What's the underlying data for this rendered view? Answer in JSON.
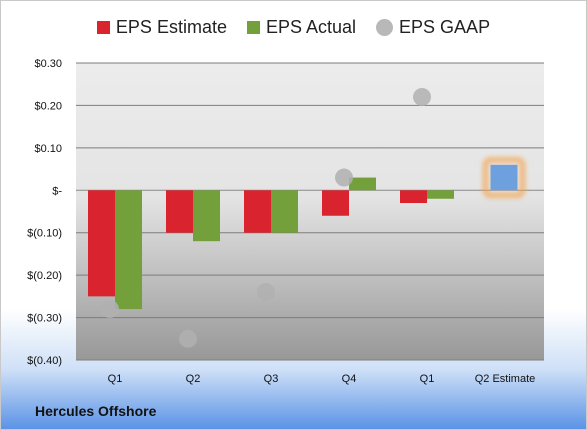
{
  "colors": {
    "estimate": "#d9232e",
    "actual": "#74a03c",
    "gaap": "#b0b0b0",
    "projected": "#6fa0de",
    "highlight": "#f5a24a"
  },
  "footer": {
    "company": "Hercules Offshore"
  },
  "chart_data": {
    "type": "bar",
    "categories": [
      "Q1",
      "Q2",
      "Q3",
      "Q4",
      "Q1",
      "Q2 Estimate"
    ],
    "series": [
      {
        "name": "EPS Estimate",
        "values": [
          -0.25,
          -0.1,
          -0.1,
          -0.06,
          -0.03,
          0.06
        ]
      },
      {
        "name": "EPS Actual",
        "values": [
          -0.28,
          -0.12,
          -0.1,
          0.03,
          -0.02,
          null
        ]
      },
      {
        "name": "EPS GAAP",
        "kind": "scatter",
        "values": [
          -0.28,
          -0.35,
          -0.24,
          0.03,
          0.22,
          null
        ]
      }
    ],
    "yticks": [
      0.3,
      0.2,
      0.1,
      0,
      -0.1,
      -0.2,
      -0.3,
      -0.4
    ],
    "ytick_labels": [
      "$0.30",
      "$0.20",
      "$0.10",
      "$-",
      "$(0.10)",
      "$(0.20)",
      "$(0.30)",
      "$(0.40)"
    ],
    "ylim": [
      -0.4,
      0.3
    ],
    "grid": true,
    "legend_position": "top"
  }
}
